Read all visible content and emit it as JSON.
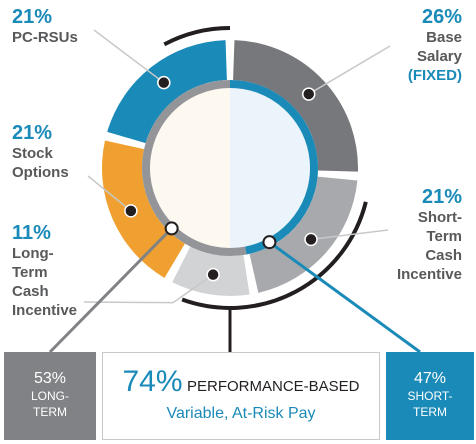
{
  "chart_data": {
    "type": "pie",
    "slices": [
      {
        "label": "Base Salary",
        "value": 26,
        "value_label": "26%",
        "note": "(FIXED)",
        "color": "#77787b"
      },
      {
        "label": "Short-Term Cash Incentive",
        "value": 21,
        "value_label": "21%",
        "color": "#a7a9ac"
      },
      {
        "label": "Long-Term Cash Incentive",
        "value": 11,
        "value_label": "11%",
        "color": "#d1d3d4"
      },
      {
        "label": "Stock Options",
        "value": 21,
        "value_label": "21%",
        "color": "#f0a030"
      },
      {
        "label": "PC-RSUs",
        "value": 21,
        "value_label": "21%",
        "color": "#1a8ab8"
      }
    ]
  },
  "labels": {
    "pc_rsus": {
      "pct": "21%",
      "text": "PC-RSUs"
    },
    "stock_options": {
      "pct": "21%",
      "text": "Stock\nOptions"
    },
    "lt_cash": {
      "pct": "11%",
      "text": "Long-\nTerm\nCash\nIncentive"
    },
    "base_salary": {
      "pct": "26%",
      "text": "Base\nSalary",
      "note": "(FIXED)"
    },
    "st_cash": {
      "pct": "21%",
      "text": "Short-\nTerm\nCash\nIncentive"
    }
  },
  "summary": {
    "long_term": {
      "pct": "53%",
      "text": "LONG-\nTERM",
      "color": "#808285"
    },
    "short_term": {
      "pct": "47%",
      "text": "SHORT-\nTERM",
      "color": "#1a8ab8"
    },
    "performance": {
      "pct": "74%",
      "heading": "PERFORMANCE-BASED",
      "subheading": "Variable, At-Risk Pay"
    }
  },
  "colors": {
    "accent": "#1a8ab8",
    "inner_ring": "#939598",
    "dark": "#231f20"
  }
}
